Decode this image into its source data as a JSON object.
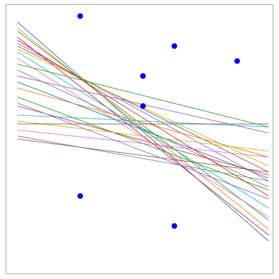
{
  "chart_data": {
    "type": "scatter",
    "title": "",
    "xlabel": "",
    "ylabel": "",
    "xlim": [
      0,
      8
    ],
    "ylim": [
      0,
      8
    ],
    "grid": false,
    "legend": "none",
    "point_color": "#0000ff",
    "frame_color": "#aaaaaa",
    "points": [
      {
        "x": 2,
        "y": 8
      },
      {
        "x": 5,
        "y": 7
      },
      {
        "x": 7,
        "y": 6.5
      },
      {
        "x": 4,
        "y": 6
      },
      {
        "x": 4,
        "y": 5
      },
      {
        "x": 2,
        "y": 2
      },
      {
        "x": 5,
        "y": 1
      }
    ],
    "lines": [
      {
        "y0": 7.8,
        "y1": 0.5,
        "color": "#1f77b4"
      },
      {
        "y0": 7.6,
        "y1": 0.9,
        "color": "#ff7f0e"
      },
      {
        "y0": 7.5,
        "y1": 1.2,
        "color": "#2ca02c"
      },
      {
        "y0": 7.3,
        "y1": 0.7,
        "color": "#d62728"
      },
      {
        "y0": 7.1,
        "y1": 2.5,
        "color": "#9467bd"
      },
      {
        "y0": 7.0,
        "y1": 2.8,
        "color": "#8c564b"
      },
      {
        "y0": 6.9,
        "y1": 3.0,
        "color": "#bcbd22"
      },
      {
        "y0": 6.8,
        "y1": 1.6,
        "color": "#17becf"
      },
      {
        "y0": 6.6,
        "y1": 1.3,
        "color": "#e377c2"
      },
      {
        "y0": 6.2,
        "y1": 2.3,
        "color": "#7f7f7f"
      },
      {
        "y0": 6.0,
        "y1": 4.1,
        "color": "#9467bd"
      },
      {
        "y0": 5.8,
        "y1": 2.6,
        "color": "#1f77b4"
      },
      {
        "y0": 5.6,
        "y1": 3.3,
        "color": "#ff7f0e"
      },
      {
        "y0": 5.3,
        "y1": 2.2,
        "color": "#2ca02c"
      },
      {
        "y0": 5.0,
        "y1": 2.7,
        "color": "#d62728"
      },
      {
        "y0": 4.7,
        "y1": 4.3,
        "color": "#17becf"
      },
      {
        "y0": 4.5,
        "y1": 3.5,
        "color": "#bcbd22"
      },
      {
        "y0": 4.4,
        "y1": 4.4,
        "color": "#8c564b"
      },
      {
        "y0": 4.2,
        "y1": 3.3,
        "color": "#e377c2"
      },
      {
        "y0": 4.0,
        "y1": 2.5,
        "color": "#7f7f7f"
      },
      {
        "y0": 3.9,
        "y1": 2.8,
        "color": "#8c564b"
      },
      {
        "y0": 6.4,
        "y1": 4.3,
        "color": "#2ca02c"
      },
      {
        "y0": 5.1,
        "y1": 1.9,
        "color": "#9467bd"
      },
      {
        "y0": 7.2,
        "y1": 2.0,
        "color": "#d62728"
      }
    ]
  }
}
